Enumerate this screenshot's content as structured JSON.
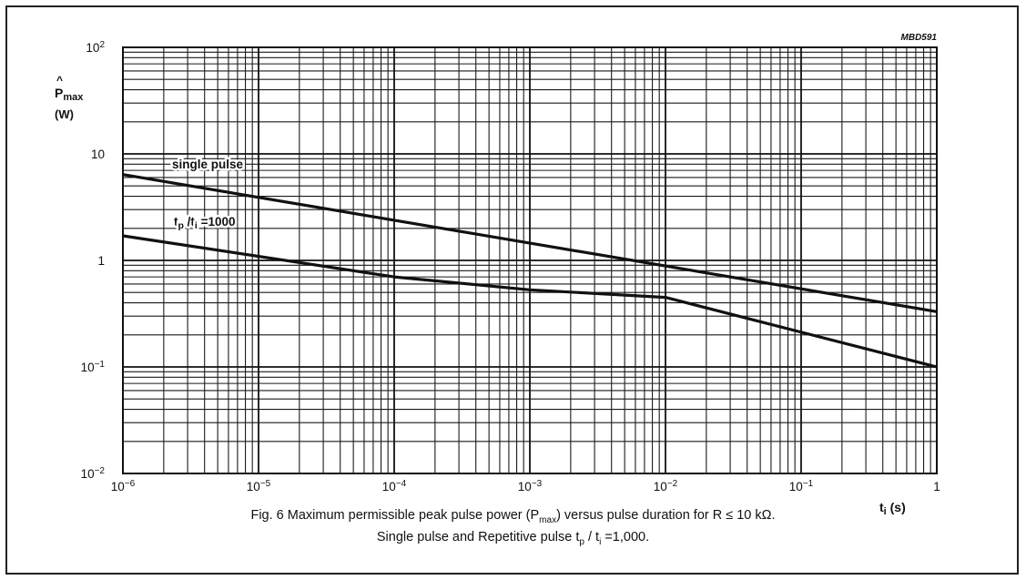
{
  "chart_data": {
    "type": "line",
    "code": "MBD591",
    "x_scale": "log",
    "y_scale": "log",
    "xlim": [
      1e-06,
      1
    ],
    "ylim": [
      0.01,
      100
    ],
    "grid": true,
    "xlabel": {
      "main": "t",
      "sub": "i",
      "unit": " (s)"
    },
    "ylabel": {
      "main": "P",
      "accent": "^",
      "sub": "max",
      "unit": "(W)"
    },
    "x_ticks": [
      {
        "value": 1e-06,
        "base": "10",
        "exp": "−6"
      },
      {
        "value": 1e-05,
        "base": "10",
        "exp": "−5"
      },
      {
        "value": 0.0001,
        "base": "10",
        "exp": "−4"
      },
      {
        "value": 0.001,
        "base": "10",
        "exp": "−3"
      },
      {
        "value": 0.01,
        "base": "10",
        "exp": "−2"
      },
      {
        "value": 0.1,
        "base": "10",
        "exp": "−1"
      },
      {
        "value": 1,
        "base": "1",
        "exp": ""
      }
    ],
    "y_ticks": [
      {
        "value": 100,
        "base": "10",
        "exp": "2"
      },
      {
        "value": 10,
        "base": "10",
        "exp": ""
      },
      {
        "value": 1,
        "base": "1",
        "exp": ""
      },
      {
        "value": 0.1,
        "base": "10",
        "exp": "−1"
      },
      {
        "value": 0.01,
        "base": "10",
        "exp": "−2"
      }
    ],
    "series": [
      {
        "label_parts": [
          {
            "text": "single pulse"
          }
        ],
        "x": [
          1e-06,
          1
        ],
        "y": [
          6.4,
          0.33
        ]
      },
      {
        "label_parts": [
          {
            "text": "t"
          },
          {
            "text": "p",
            "sub": true
          },
          {
            "text": " /t"
          },
          {
            "text": "i",
            "sub": true
          },
          {
            "text": " =1000"
          }
        ],
        "x": [
          1e-06,
          0.0001,
          0.001,
          0.01,
          1
        ],
        "y": [
          1.7,
          0.7,
          0.53,
          0.45,
          0.1
        ]
      }
    ]
  },
  "caption": {
    "line1_parts": [
      {
        "text": "Fig. 6    Maximum permissible peak pulse power (P"
      },
      {
        "text": "max",
        "sub": true
      },
      {
        "text": ") versus pulse duration for R ≤ 10 kΩ."
      }
    ],
    "line2_parts": [
      {
        "text": "Single pulse and Repetitive pulse t"
      },
      {
        "text": "p",
        "sub": true
      },
      {
        "text": " / t"
      },
      {
        "text": "i",
        "sub": true
      },
      {
        "text": " =1,000."
      }
    ]
  }
}
